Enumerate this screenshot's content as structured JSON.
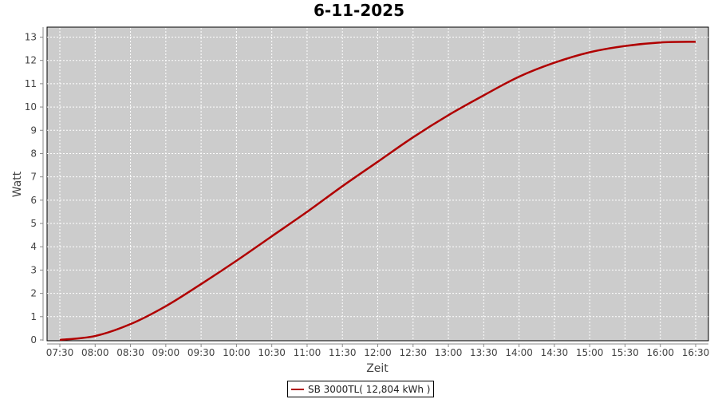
{
  "chart_data": {
    "type": "line",
    "title": "6-11-2025",
    "xlabel": "Zeit",
    "ylabel": "Watt",
    "x_ticks": [
      "07:30",
      "08:00",
      "08:30",
      "09:00",
      "09:30",
      "10:00",
      "10:30",
      "11:00",
      "11:30",
      "12:00",
      "12:30",
      "13:00",
      "13:30",
      "14:00",
      "14:30",
      "15:00",
      "15:30",
      "16:00",
      "16:30"
    ],
    "y_ticks": [
      0,
      1,
      2,
      3,
      4,
      5,
      6,
      7,
      8,
      9,
      10,
      11,
      12,
      13
    ],
    "ylim": [
      0,
      13.4
    ],
    "grid": true,
    "legend_position": "bottom",
    "series": [
      {
        "name": "SB 3000TL( 12,804 kWh )",
        "color": "#b00000",
        "x": [
          "07:30",
          "08:00",
          "08:30",
          "09:00",
          "09:30",
          "10:00",
          "10:30",
          "11:00",
          "11:30",
          "12:00",
          "12:30",
          "13:00",
          "13:30",
          "14:00",
          "14:30",
          "15:00",
          "15:30",
          "16:00",
          "16:30"
        ],
        "y": [
          0,
          0.17,
          0.68,
          1.45,
          2.4,
          3.4,
          4.45,
          5.5,
          6.6,
          7.65,
          8.7,
          9.65,
          10.5,
          11.3,
          11.9,
          12.35,
          12.62,
          12.77,
          12.8
        ]
      }
    ]
  },
  "colors": {
    "plot_background": "#cccccc",
    "grid": "#ffffff"
  }
}
